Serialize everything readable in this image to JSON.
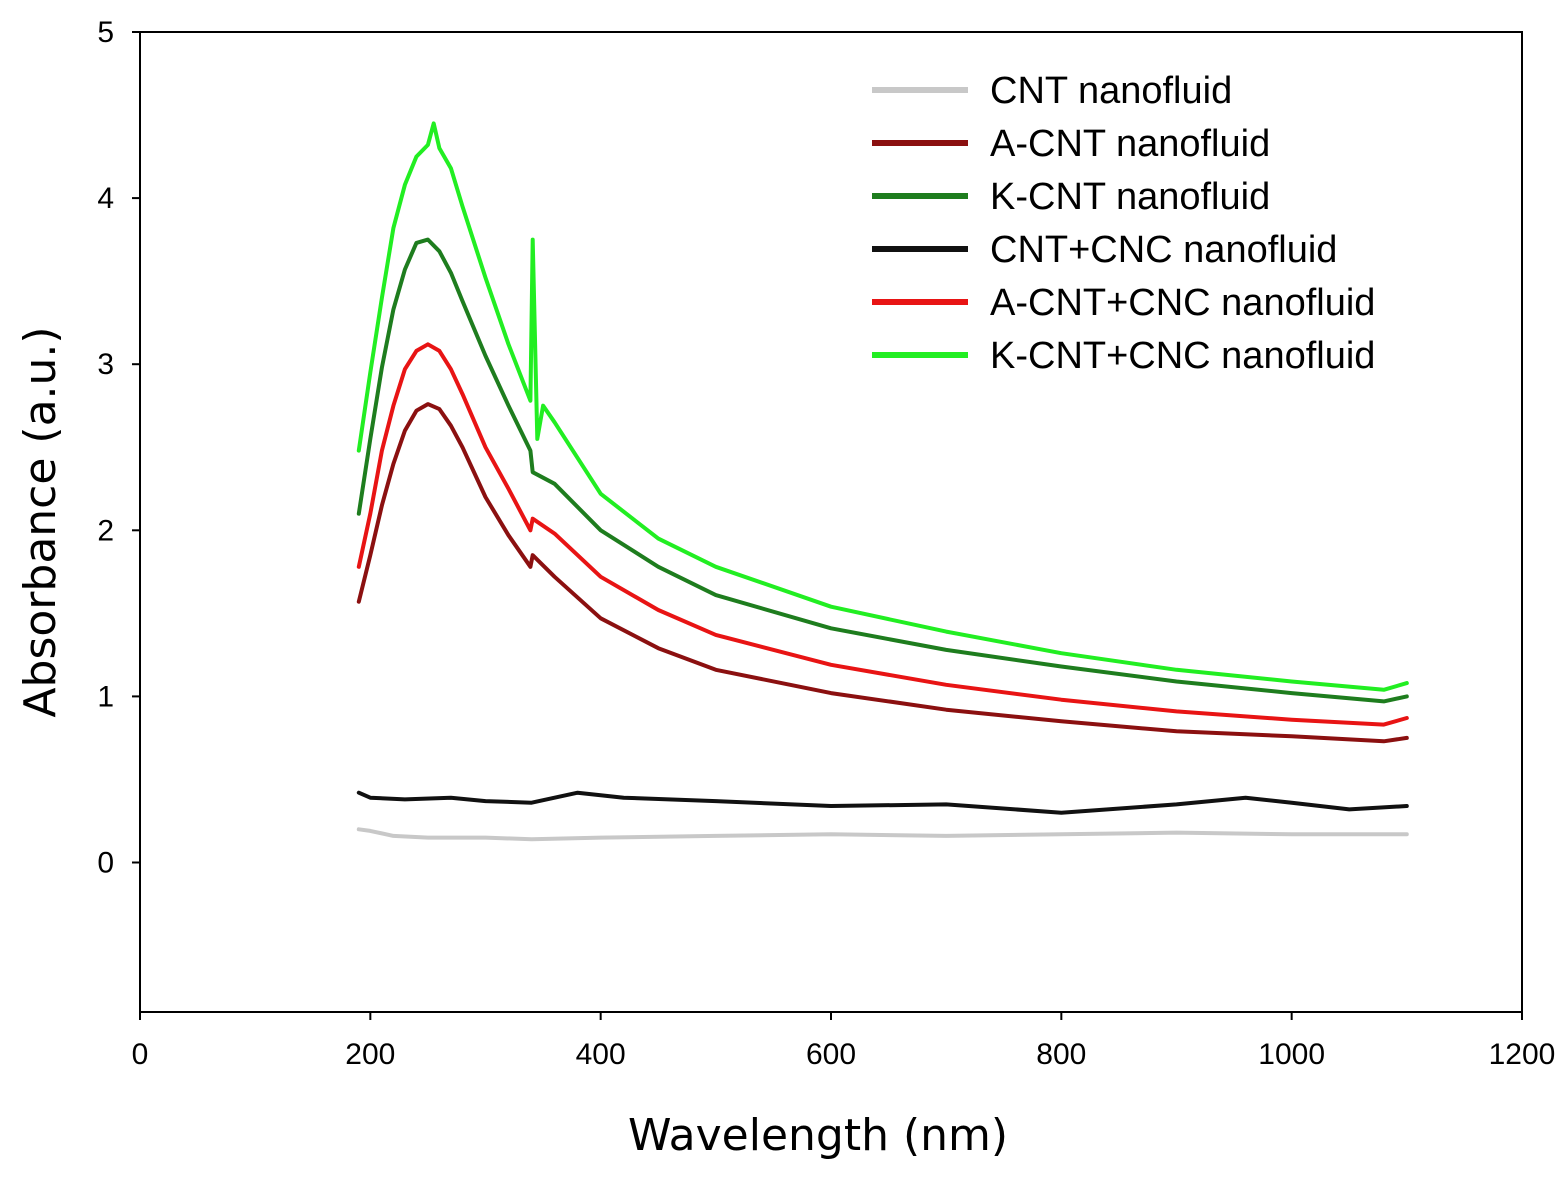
{
  "chart_data": {
    "type": "line",
    "title": "",
    "xlabel": "Wavelength (nm)",
    "ylabel": "Absorbance (a.u.)",
    "xlim": [
      0,
      1200
    ],
    "ylim": [
      -0.9,
      5
    ],
    "xticks": [
      0,
      200,
      400,
      600,
      800,
      1000,
      1200
    ],
    "yticks": [
      0,
      1,
      2,
      3,
      4,
      5
    ],
    "grid": false,
    "legend_position": "top-right",
    "series": [
      {
        "name": "CNT nanofluid",
        "color": "#c8c8c8",
        "x": [
          190,
          200,
          220,
          250,
          300,
          340,
          400,
          500,
          600,
          700,
          800,
          900,
          1000,
          1100
        ],
        "y": [
          0.2,
          0.19,
          0.16,
          0.15,
          0.15,
          0.14,
          0.15,
          0.16,
          0.17,
          0.16,
          0.17,
          0.18,
          0.17,
          0.17
        ]
      },
      {
        "name": "A-CNT nanofluid",
        "color": "#8b1010",
        "x": [
          190,
          200,
          210,
          220,
          230,
          240,
          250,
          260,
          270,
          280,
          300,
          320,
          339,
          341,
          360,
          400,
          450,
          500,
          600,
          700,
          800,
          900,
          1000,
          1080,
          1100
        ],
        "y": [
          1.57,
          1.85,
          2.15,
          2.4,
          2.6,
          2.72,
          2.76,
          2.73,
          2.63,
          2.5,
          2.2,
          1.97,
          1.78,
          1.85,
          1.72,
          1.47,
          1.29,
          1.16,
          1.02,
          0.92,
          0.85,
          0.79,
          0.76,
          0.73,
          0.75
        ]
      },
      {
        "name": "K-CNT nanofluid",
        "color": "#1e7d1e",
        "x": [
          190,
          200,
          210,
          220,
          230,
          240,
          250,
          260,
          270,
          280,
          300,
          320,
          339,
          341,
          360,
          400,
          450,
          500,
          600,
          700,
          800,
          900,
          1000,
          1080,
          1100
        ],
        "y": [
          2.1,
          2.55,
          2.98,
          3.33,
          3.57,
          3.73,
          3.75,
          3.68,
          3.55,
          3.38,
          3.05,
          2.75,
          2.48,
          2.35,
          2.28,
          2.0,
          1.78,
          1.61,
          1.41,
          1.28,
          1.18,
          1.09,
          1.02,
          0.97,
          1.0
        ]
      },
      {
        "name": "CNT+CNC nanofluid",
        "color": "#111111",
        "x": [
          190,
          200,
          230,
          270,
          300,
          340,
          380,
          420,
          500,
          600,
          700,
          800,
          900,
          960,
          1000,
          1050,
          1100
        ],
        "y": [
          0.42,
          0.39,
          0.38,
          0.39,
          0.37,
          0.36,
          0.42,
          0.39,
          0.37,
          0.34,
          0.35,
          0.3,
          0.35,
          0.39,
          0.36,
          0.32,
          0.34
        ]
      },
      {
        "name": "A-CNT+CNC nanofluid",
        "color": "#e81414",
        "x": [
          190,
          200,
          210,
          220,
          230,
          240,
          250,
          260,
          270,
          280,
          300,
          320,
          339,
          341,
          360,
          400,
          450,
          500,
          600,
          700,
          800,
          900,
          1000,
          1080,
          1100
        ],
        "y": [
          1.78,
          2.1,
          2.48,
          2.75,
          2.97,
          3.08,
          3.12,
          3.08,
          2.97,
          2.82,
          2.5,
          2.25,
          2.0,
          2.07,
          1.98,
          1.72,
          1.52,
          1.37,
          1.19,
          1.07,
          0.98,
          0.91,
          0.86,
          0.83,
          0.87
        ]
      },
      {
        "name": "K-CNT+CNC nanofluid",
        "color": "#22ee22",
        "x": [
          190,
          200,
          210,
          220,
          230,
          240,
          250,
          255,
          260,
          270,
          280,
          300,
          320,
          339,
          341,
          345,
          350,
          360,
          400,
          450,
          500,
          600,
          700,
          800,
          900,
          1000,
          1080,
          1100
        ],
        "y": [
          2.48,
          2.95,
          3.4,
          3.82,
          4.08,
          4.25,
          4.32,
          4.45,
          4.3,
          4.18,
          3.95,
          3.52,
          3.12,
          2.78,
          3.75,
          2.55,
          2.75,
          2.65,
          2.22,
          1.95,
          1.78,
          1.54,
          1.39,
          1.26,
          1.16,
          1.09,
          1.04,
          1.08
        ]
      }
    ]
  }
}
